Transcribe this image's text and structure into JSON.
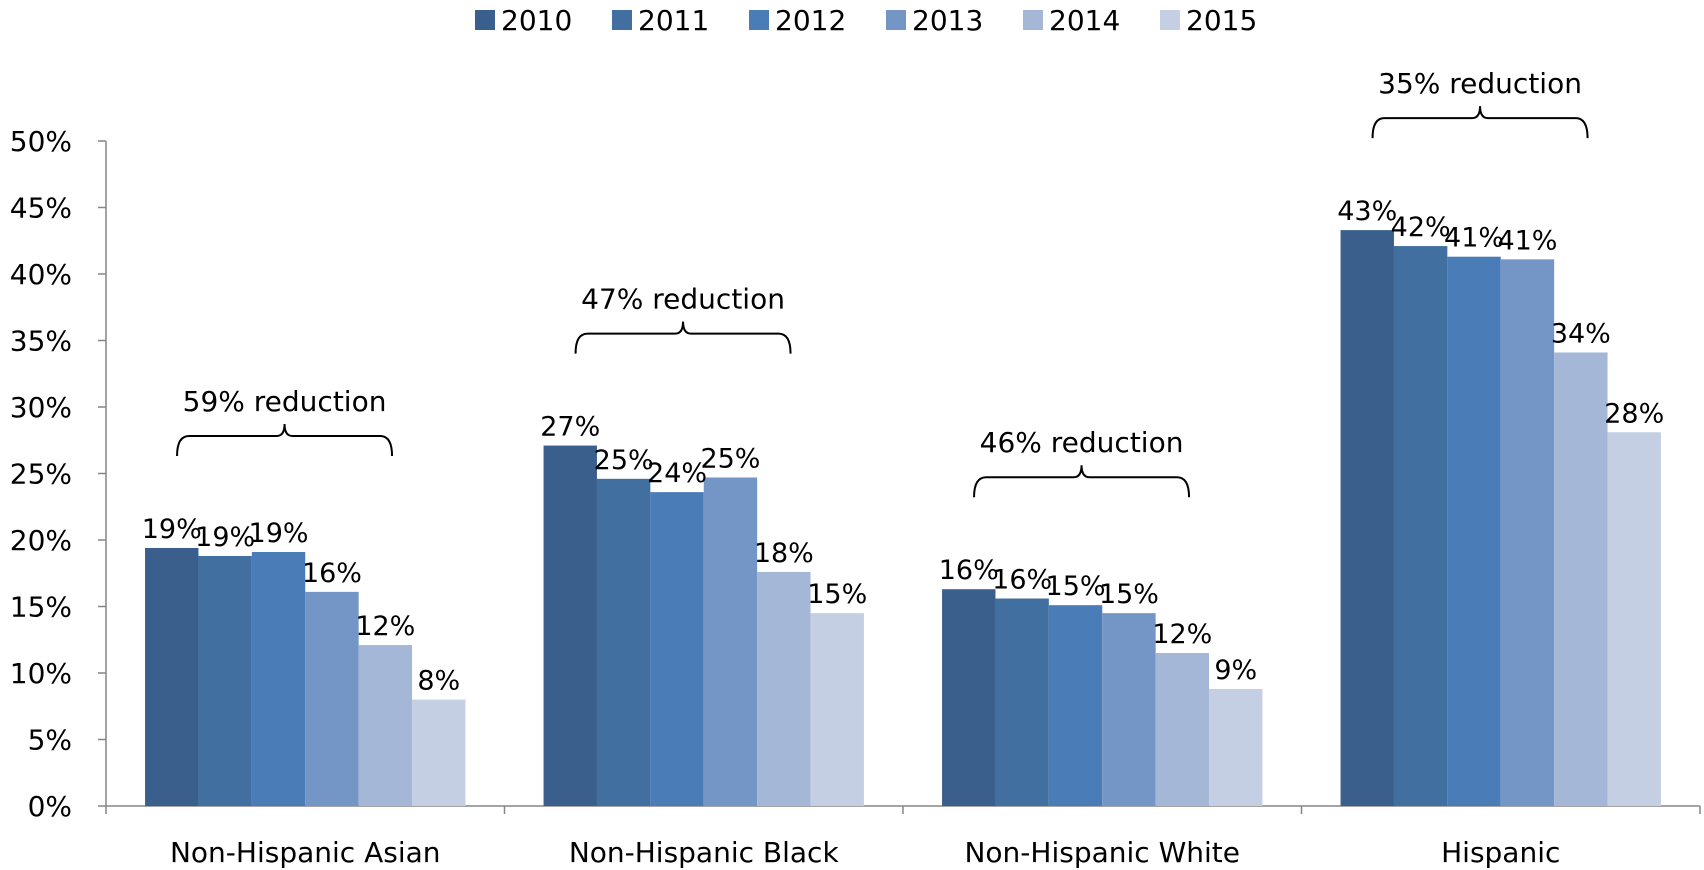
{
  "chart_data": {
    "type": "bar",
    "title": "",
    "xlabel": "",
    "ylabel": "",
    "ylim": [
      0,
      0.5
    ],
    "yticks": [
      0,
      0.05,
      0.1,
      0.15,
      0.2,
      0.25,
      0.3,
      0.35,
      0.4,
      0.45,
      0.5
    ],
    "ytick_labels": [
      "0%",
      "5%",
      "10%",
      "15%",
      "20%",
      "25%",
      "30%",
      "35%",
      "40%",
      "45%",
      "50%"
    ],
    "grid": false,
    "legend_position": "top-center",
    "categories": [
      "Non-Hispanic Asian",
      "Non-Hispanic Black",
      "Non-Hispanic White",
      "Hispanic"
    ],
    "series": [
      {
        "name": "2010",
        "color": "#3a5f8c",
        "values": [
          0.194,
          0.271,
          0.163,
          0.433
        ],
        "labels": [
          "19%",
          "27%",
          "16%",
          "43%"
        ]
      },
      {
        "name": "2011",
        "color": "#416fa0",
        "values": [
          0.188,
          0.246,
          0.156,
          0.421
        ],
        "labels": [
          "19%",
          "25%",
          "16%",
          "42%"
        ]
      },
      {
        "name": "2012",
        "color": "#4a7db7",
        "values": [
          0.191,
          0.236,
          0.151,
          0.413
        ],
        "labels": [
          "19%",
          "24%",
          "15%",
          "41%"
        ]
      },
      {
        "name": "2013",
        "color": "#7496c6",
        "values": [
          0.161,
          0.247,
          0.145,
          0.411
        ],
        "labels": [
          "16%",
          "25%",
          "15%",
          "41%"
        ]
      },
      {
        "name": "2014",
        "color": "#a5b7d6",
        "values": [
          0.121,
          0.176,
          0.115,
          0.341
        ],
        "labels": [
          "12%",
          "18%",
          "12%",
          "34%"
        ]
      },
      {
        "name": "2015",
        "color": "#c5cfe4",
        "values": [
          0.08,
          0.145,
          0.088,
          0.281
        ],
        "labels": [
          "8%",
          "15%",
          "9%",
          "28%"
        ]
      }
    ],
    "annotations": [
      {
        "category": "Non-Hispanic Asian",
        "text": "59% reduction"
      },
      {
        "category": "Non-Hispanic Black",
        "text": "47% reduction"
      },
      {
        "category": "Non-Hispanic White",
        "text": "46% reduction"
      },
      {
        "category": "Hispanic",
        "text": "35% reduction"
      }
    ]
  }
}
